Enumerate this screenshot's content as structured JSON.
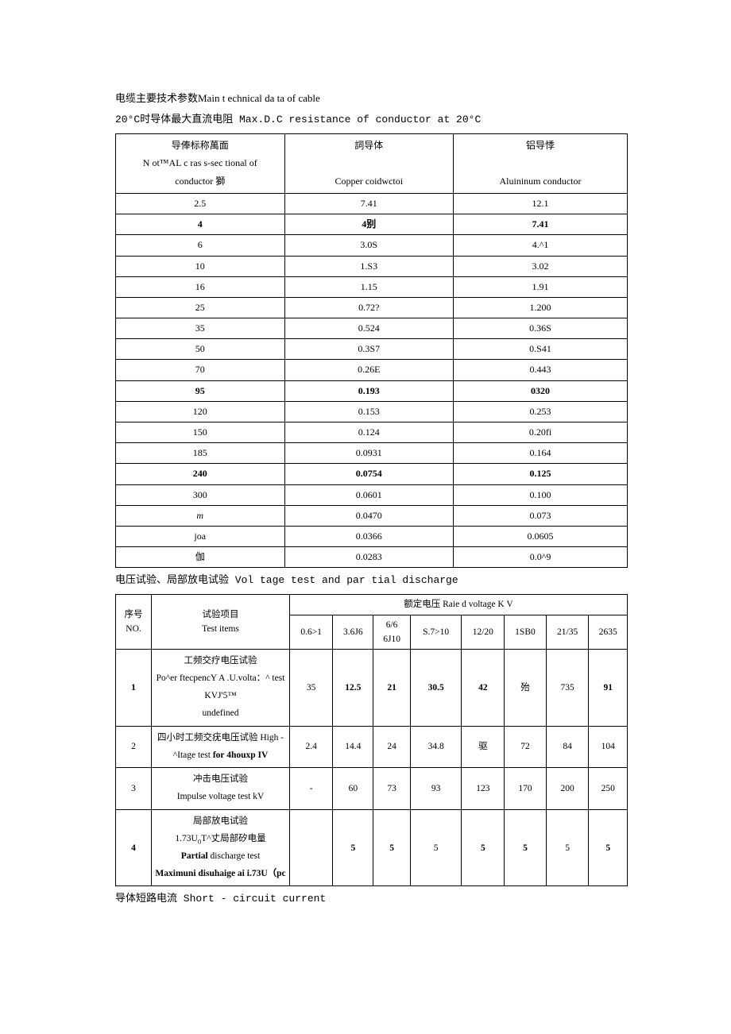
{
  "headings": {
    "h1": "电缆主要技术参数Main t echnical da ta of cable",
    "h2": "20°C时导体最大直流电阻 Max.D.C resistance of conductor at 20°C",
    "h3": "电压试验、局部放电试验 Vol tage test and par tial discharge",
    "h4": "导体短路电流 Short - circuit current"
  },
  "table1": {
    "header": {
      "c1a": "导俸标称萬面",
      "c1b": "N ot™AL c ras s-sec tional of",
      "c1c": "conductor 獅",
      "c2a": "詞导体",
      "c2b": "Copper coidwctoi",
      "c3a": "铝导悸",
      "c3b": "Aluininum conductor"
    },
    "rows": [
      {
        "a": "2.5",
        "b": "7.41",
        "c": "12.1",
        "bold": false
      },
      {
        "a": "4",
        "b": "4别",
        "c": "7.41",
        "bold": true
      },
      {
        "a": "6",
        "b": "3.0S",
        "c": "4.^1",
        "bold": false
      },
      {
        "a": "10",
        "b": "1.S3",
        "c": "3.02",
        "bold": false
      },
      {
        "a": "16",
        "b": "1.15",
        "c": "1.91",
        "bold": false
      },
      {
        "a": "25",
        "b": "0.72?",
        "c": "1.200",
        "bold": false
      },
      {
        "a": "35",
        "b": "0.524",
        "c": "0.36S",
        "bold": false
      },
      {
        "a": "50",
        "b": "0.3S7",
        "c": "0.S41",
        "bold": false
      },
      {
        "a": "70",
        "b": "0.26E",
        "c": "0.443",
        "bold": false
      },
      {
        "a": "95",
        "b": "0.193",
        "c": "0320",
        "bold": true
      },
      {
        "a": "120",
        "b": "0.153",
        "c": "0.253",
        "bold": false
      },
      {
        "a": "150",
        "b": "0.124",
        "c": "0.20fi",
        "bold": false
      },
      {
        "a": "185",
        "b": "0.0931",
        "c": "0.164",
        "bold": false
      },
      {
        "a": "240",
        "b": "0.0754",
        "c": "0.125",
        "bold": true
      },
      {
        "a": "300",
        "b": "0.0601",
        "c": "0.100",
        "bold": false
      },
      {
        "a": "m",
        "b": "0.0470",
        "c": "0.073",
        "ital": true
      },
      {
        "a": "joa",
        "b": "0.0366",
        "c": "0.0605",
        "bold": false
      },
      {
        "a": "伽",
        "b": "0.0283",
        "c": "0.0^9",
        "bold": false
      }
    ]
  },
  "table2": {
    "header": {
      "c1a": "序号",
      "c1b": "NO.",
      "c2a": "试验项目",
      "c2b": "Test items",
      "c3": "额定电压  Raie d voltage K V",
      "v": [
        "0.6>1",
        "3.6J6",
        "6/6 6J10",
        "S.7>10",
        "12/20",
        "1SB0",
        "21/35",
        "2635"
      ]
    },
    "rows": [
      {
        "no": "1",
        "desc": "工频交疗电压试验\nPo^er ftecpencY A .U.volta：^ test KVJ'5™",
        "v": [
          "35",
          "12.5",
          "21",
          "30.5",
          "42",
          "殆",
          "735",
          "91"
        ],
        "boldNo": true,
        "boldIdx": [
          1,
          2,
          3,
          4,
          7
        ]
      },
      {
        "no": "2",
        "desc": "四小时工频交疣电压试验  High - ^Itage test for 4houxp IV",
        "v": [
          "2.4",
          "14.4",
          "24",
          "34.8",
          "驱",
          "72",
          "84",
          "104"
        ],
        "boldPart": "for 4houxp IV"
      },
      {
        "no": "3",
        "desc": "冲击电压试验\nImpulse voltage test kV",
        "v": [
          "-",
          "60",
          "73",
          "93",
          "123",
          "170",
          "200",
          "250"
        ]
      },
      {
        "no": "4",
        "desc": "局部放电试验\n1.73U₀T^丈局部矽电量\nPartial discharge test\nMaximuni disuhaige ai i.73U（pc",
        "v": [
          "",
          "5",
          "5",
          "5",
          "5",
          "5",
          "5",
          "5"
        ],
        "boldNo": true,
        "boldIdx": [
          1,
          2,
          4,
          5,
          7
        ]
      }
    ]
  }
}
